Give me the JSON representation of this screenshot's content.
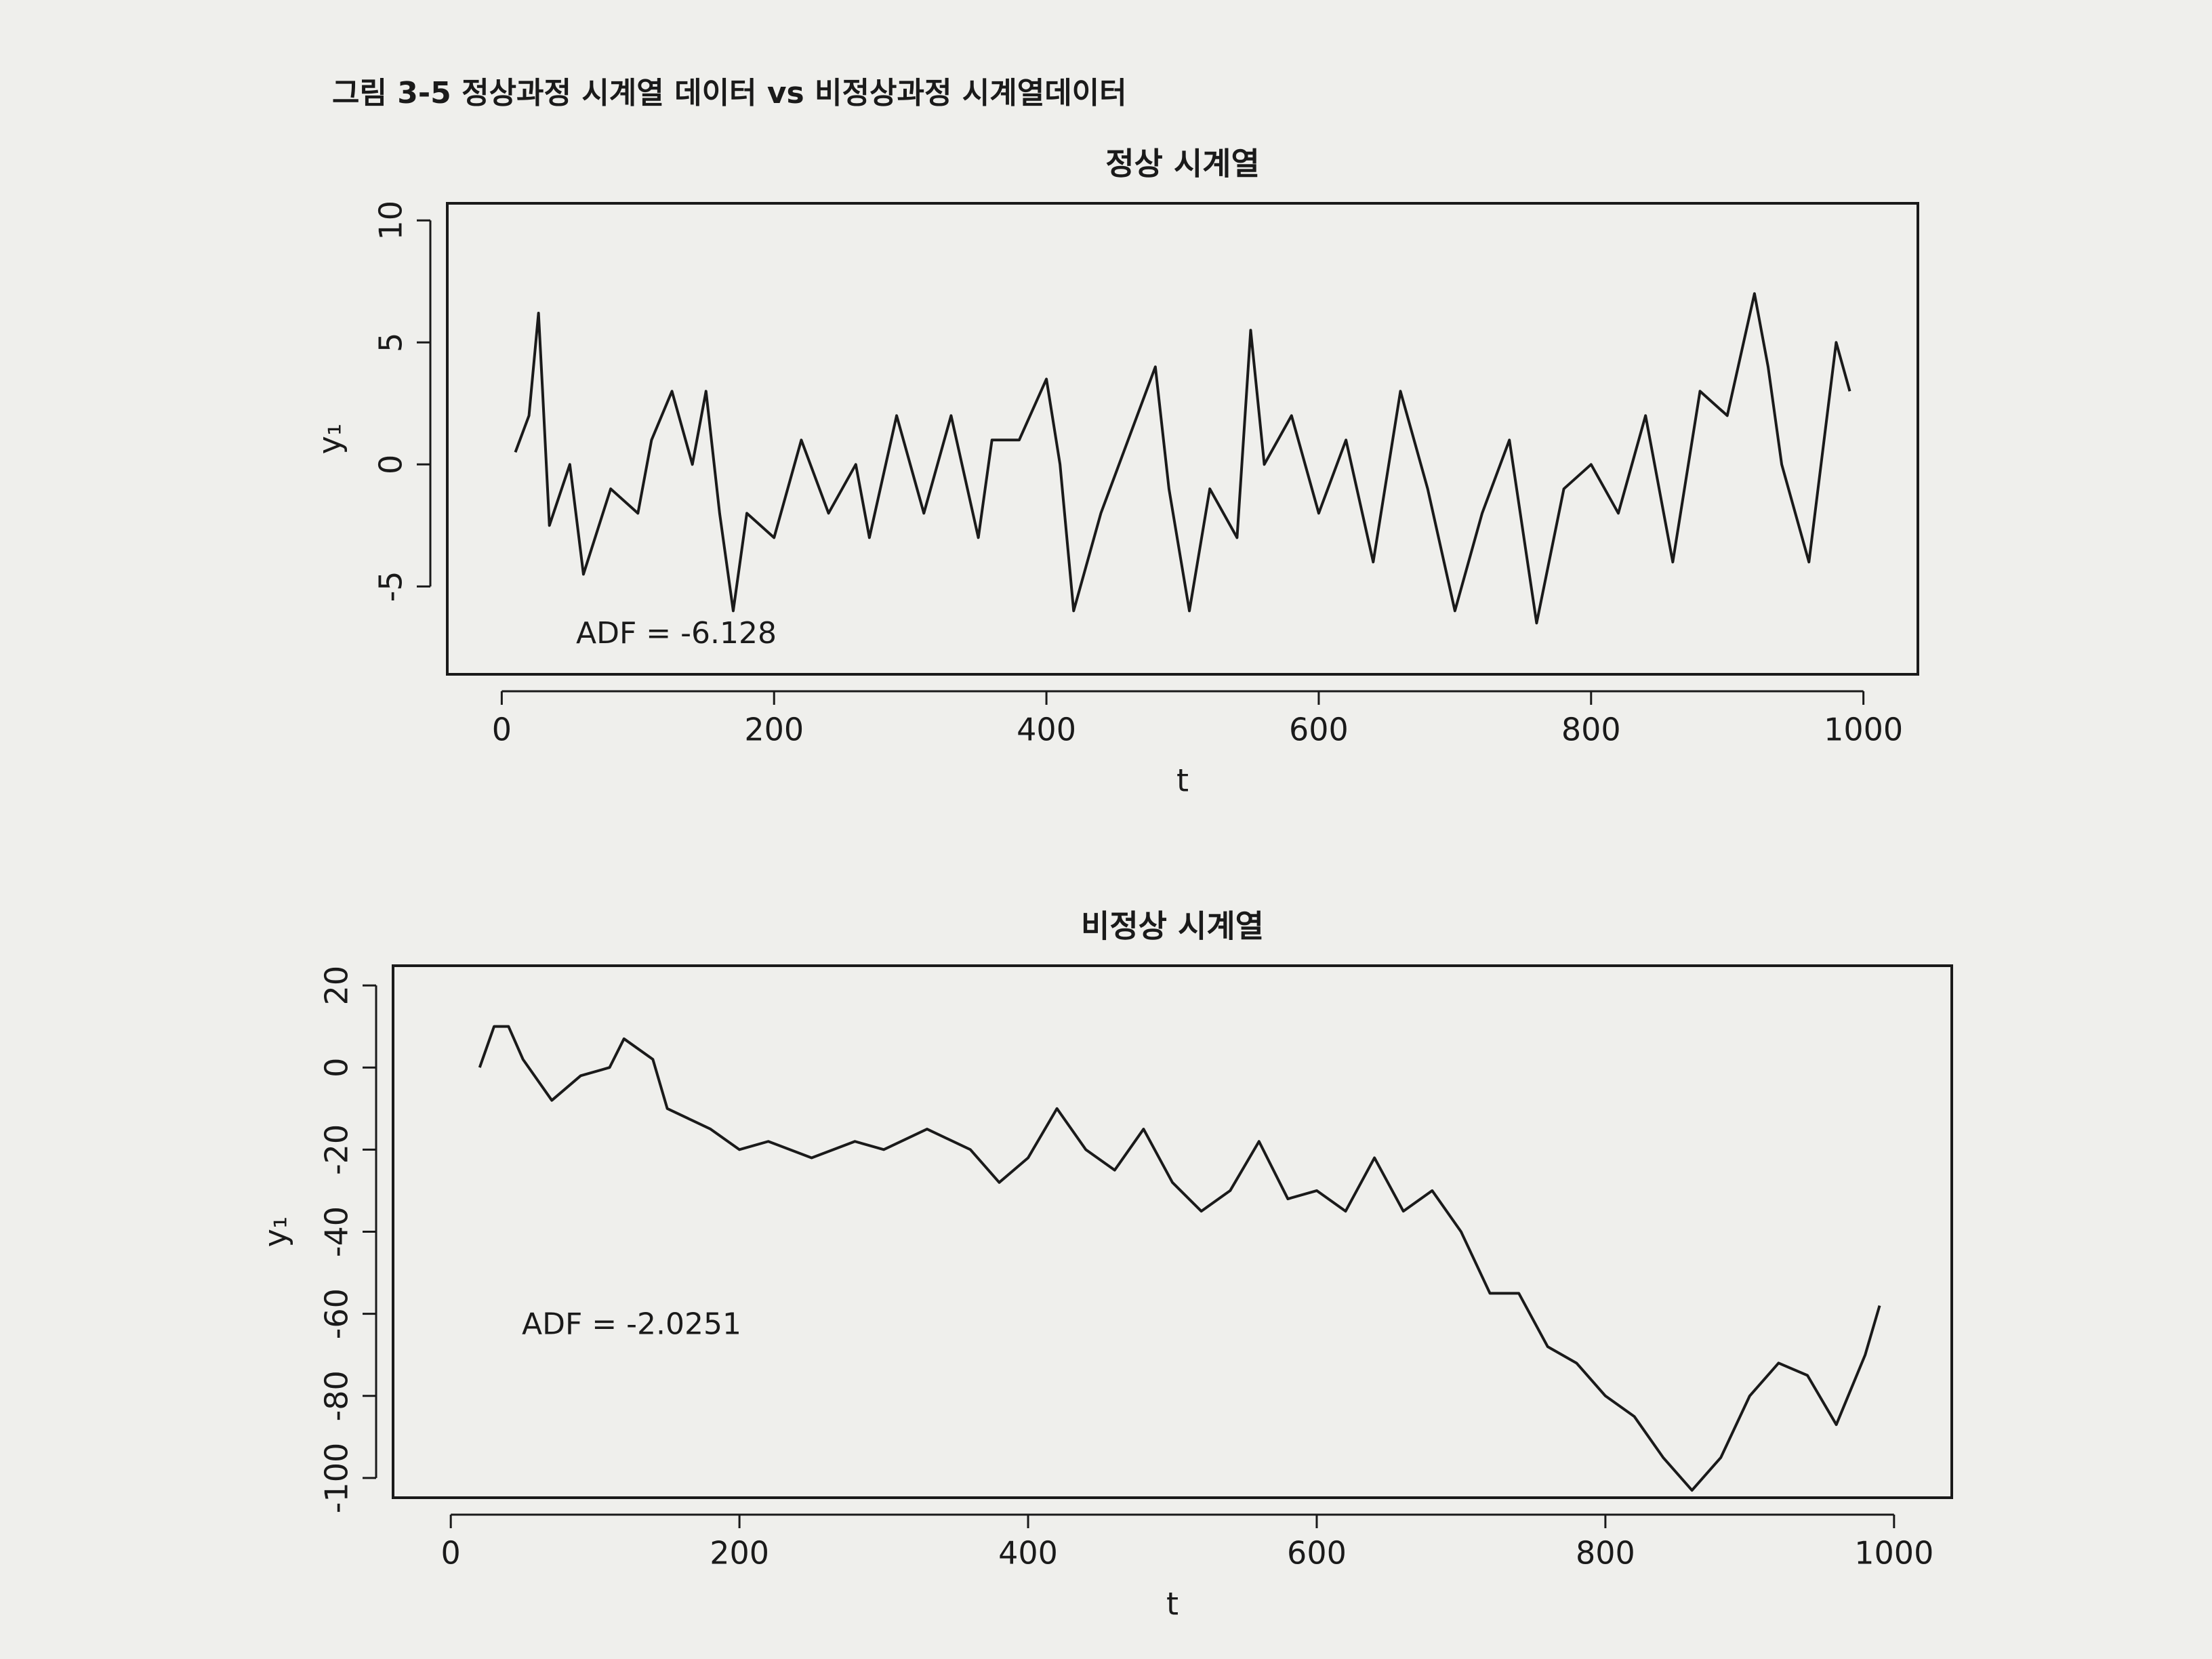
{
  "caption": "그림 3-5 정상과정 시계열 데이터 vs 비정상과정 시계열데이터",
  "chart_data": [
    {
      "type": "line",
      "title": "정상 시계열",
      "xlabel": "t",
      "ylabel": "y₁",
      "annotation": "ADF = -6.128",
      "color": "#1a1a1a",
      "x": [
        10,
        20,
        27,
        30,
        35,
        50,
        60,
        80,
        100,
        110,
        125,
        140,
        150,
        160,
        170,
        180,
        200,
        220,
        240,
        260,
        270,
        290,
        310,
        330,
        350,
        360,
        380,
        400,
        410,
        420,
        440,
        460,
        480,
        490,
        505,
        520,
        540,
        550,
        560,
        580,
        600,
        620,
        640,
        660,
        680,
        700,
        720,
        740,
        760,
        780,
        800,
        820,
        840,
        860,
        880,
        900,
        920,
        930,
        940,
        960,
        980,
        990
      ],
      "values": [
        0.5,
        2,
        6.2,
        3,
        -2.5,
        0,
        -4.5,
        -1,
        -2,
        1,
        3,
        0,
        3,
        -2,
        -6,
        -2,
        -3,
        1,
        -2,
        0,
        -3,
        2,
        -2,
        2,
        -3,
        1,
        1,
        3.5,
        0,
        -6,
        -2,
        1,
        4,
        -1,
        -6,
        -1,
        -3,
        5.5,
        0,
        2,
        -2,
        1,
        -4,
        3,
        -1,
        -6,
        -2,
        1,
        -6.5,
        -1,
        0,
        -2,
        2,
        -4,
        3,
        2,
        7,
        4,
        0,
        -4,
        5,
        3
      ],
      "xlim": [
        -40,
        1040
      ],
      "ylim": [
        -8.6,
        10.7
      ],
      "xticks": [
        0,
        200,
        400,
        600,
        800,
        1000
      ],
      "yticks": [
        -5,
        0,
        5,
        10
      ]
    },
    {
      "type": "line",
      "title": "비정상 시계열",
      "xlabel": "t",
      "ylabel": "y₁",
      "annotation": "ADF = -2.0251",
      "color": "#1a1a1a",
      "x": [
        20,
        30,
        40,
        50,
        70,
        90,
        110,
        120,
        140,
        150,
        180,
        200,
        220,
        250,
        280,
        300,
        330,
        360,
        380,
        400,
        420,
        440,
        460,
        480,
        500,
        520,
        540,
        560,
        580,
        600,
        620,
        640,
        660,
        680,
        700,
        720,
        740,
        760,
        780,
        800,
        820,
        840,
        860,
        880,
        900,
        920,
        940,
        960,
        980,
        990
      ],
      "values": [
        0,
        10,
        10,
        2,
        -8,
        -2,
        0,
        7,
        2,
        -10,
        -15,
        -20,
        -18,
        -22,
        -18,
        -20,
        -15,
        -20,
        -28,
        -22,
        -10,
        -20,
        -25,
        -15,
        -28,
        -35,
        -30,
        -18,
        -32,
        -30,
        -35,
        -22,
        -35,
        -30,
        -40,
        -55,
        -55,
        -68,
        -72,
        -80,
        -85,
        -95,
        -103,
        -95,
        -80,
        -72,
        -75,
        -87,
        -70,
        -58
      ],
      "xlim": [
        -40,
        1040
      ],
      "ylim": [
        -104.8,
        24.8
      ],
      "xticks": [
        0,
        200,
        400,
        600,
        800,
        1000
      ],
      "yticks": [
        -100,
        -80,
        -60,
        -40,
        -20,
        0,
        20
      ]
    }
  ]
}
